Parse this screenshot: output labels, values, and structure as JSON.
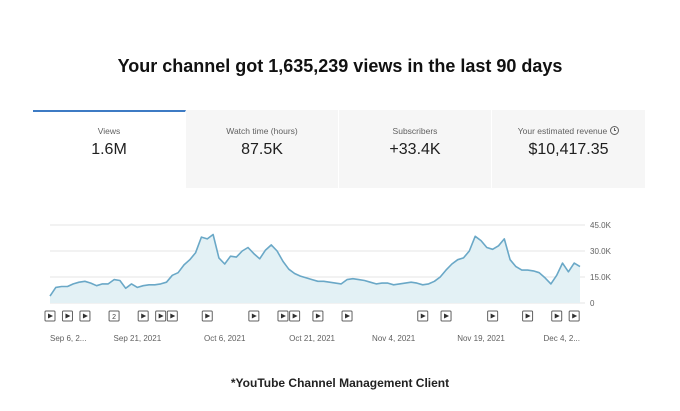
{
  "headline": "Your channel got 1,635,239 views in the last 90 days",
  "tabs": [
    {
      "label": "Views",
      "value": "1.6M",
      "active": true
    },
    {
      "label": "Watch time (hours)",
      "value": "87.5K",
      "active": false
    },
    {
      "label": "Subscribers",
      "value": "+33.4K",
      "active": false
    },
    {
      "label": "Your estimated revenue",
      "value": "$10,417.35",
      "active": false,
      "icon": "info-icon"
    }
  ],
  "colors": {
    "line": "#6aa8c7",
    "fill": "#e3f1f5",
    "active_tab": "#3d7bc4",
    "grid": "#e6e6e6"
  },
  "chart_data": {
    "type": "area",
    "title": "",
    "xlabel": "",
    "ylabel": "",
    "ylim": [
      0,
      45000
    ],
    "y_ticks": [
      "0",
      "15.0K",
      "30.0K",
      "45.0K"
    ],
    "y_tick_values": [
      0,
      15000,
      30000,
      45000
    ],
    "x_tick_labels": [
      "Sep 6, 2...",
      "Sep 21, 2021",
      "Oct 6, 2021",
      "Oct 21, 2021",
      "Nov 4, 2021",
      "Nov 19, 2021",
      "Dec 4, 2..."
    ],
    "x_tick_days": [
      0,
      15,
      30,
      45,
      59,
      74,
      89
    ],
    "grid": true,
    "series": [
      {
        "values": [
          4000,
          9000,
          9500,
          9500,
          11000,
          12000,
          12500,
          11500,
          10000,
          11000,
          11000,
          13500,
          13000,
          8500,
          11000,
          9000,
          10000,
          10500,
          10500,
          11000,
          12000,
          16000,
          17500,
          22000,
          25000,
          29000,
          38000,
          37000,
          39500,
          26000,
          22500,
          27000,
          26500,
          30000,
          32000,
          28500,
          25500,
          30500,
          33500,
          30000,
          24000,
          19500,
          17000,
          15500,
          14500,
          13500,
          12500,
          12500,
          12000,
          11500,
          11000,
          13500,
          14000,
          13500,
          13000,
          12000,
          11000,
          11500,
          11500,
          10500,
          11000,
          11500,
          12000,
          11500,
          10500,
          11000,
          12500,
          15000,
          19000,
          22500,
          25000,
          26000,
          30000,
          38500,
          36000,
          32000,
          31000,
          33000,
          37000,
          25000,
          21000,
          19000,
          19000,
          18500,
          17500,
          14500,
          11000,
          16000,
          23000,
          18000,
          23000,
          21000
        ],
        "x_start": 0,
        "x_step": 1
      }
    ],
    "video_markers": [
      {
        "day": 0,
        "label": ""
      },
      {
        "day": 3,
        "label": ""
      },
      {
        "day": 6,
        "label": ""
      },
      {
        "day": 11,
        "label": "2"
      },
      {
        "day": 16,
        "label": ""
      },
      {
        "day": 19,
        "label": ""
      },
      {
        "day": 21,
        "label": ""
      },
      {
        "day": 27,
        "label": ""
      },
      {
        "day": 35,
        "label": ""
      },
      {
        "day": 40,
        "label": ""
      },
      {
        "day": 42,
        "label": ""
      },
      {
        "day": 46,
        "label": ""
      },
      {
        "day": 51,
        "label": ""
      },
      {
        "day": 64,
        "label": ""
      },
      {
        "day": 68,
        "label": ""
      },
      {
        "day": 76,
        "label": ""
      },
      {
        "day": 82,
        "label": ""
      },
      {
        "day": 87,
        "label": ""
      },
      {
        "day": 90,
        "label": ""
      }
    ]
  },
  "caption": "*YouTube Channel Management Client"
}
